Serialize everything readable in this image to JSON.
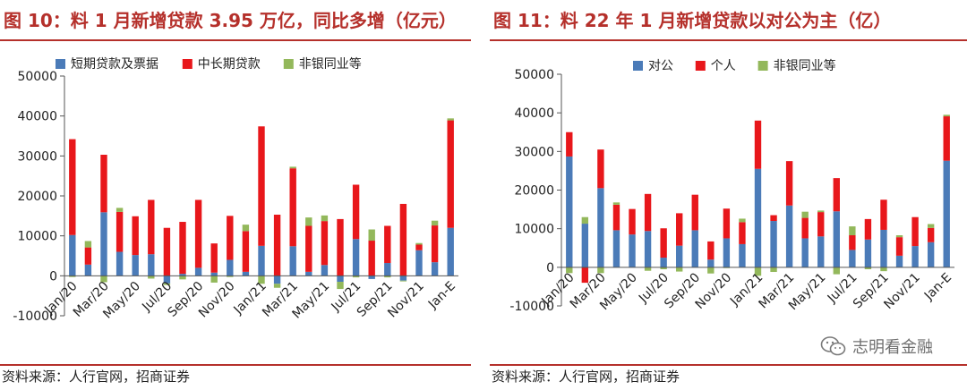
{
  "colors": {
    "short": "#4b7bb8",
    "long": "#e8171b",
    "nonbank": "#93b85b",
    "accent": "#b5302b"
  },
  "left": {
    "title": "图 10：料 1 月新增贷款 3.95 万亿，同比多增（亿元）",
    "source": "资料来源：人行官网，招商证券"
  },
  "right": {
    "title": "图 11：料 22 年 1 月新增贷款以对公为主（亿）",
    "source": "资料来源：人行官网，招商证券"
  },
  "watermark": {
    "text": "志明看金融",
    "icon": "wechat-icon"
  },
  "chart_data": [
    {
      "type": "bar",
      "stacked": true,
      "legend_position": "top",
      "grid": false,
      "ylim": [
        -10000,
        50000
      ],
      "yticks": [
        "-10000",
        "0",
        "10000",
        "20000",
        "30000",
        "40000",
        "50000"
      ],
      "categories": [
        "Jan/20",
        "Feb/20",
        "Mar/20",
        "Apr/20",
        "May/20",
        "Jun/20",
        "Jul/20",
        "Aug/20",
        "Sep/20",
        "Oct/20",
        "Nov/20",
        "Dec/20",
        "Jan/21",
        "Feb/21",
        "Mar/21",
        "Apr/21",
        "May/21",
        "Jun/21",
        "Jul/21",
        "Aug/21",
        "Sep/21",
        "Oct/21",
        "Nov/21",
        "Dec/21",
        "Jan-E"
      ],
      "xtick_labels": [
        "Jan/20",
        "",
        "Mar/20",
        "",
        "May/20",
        "",
        "Jul/20",
        "",
        "Sep/20",
        "",
        "Nov/20",
        "",
        "Jan/21",
        "",
        "Mar/21",
        "",
        "May/21",
        "",
        "Jul/21",
        "",
        "Sep/21",
        "",
        "Nov/21",
        "",
        "Jan-E"
      ],
      "series": [
        {
          "name": "短期贷款及票据",
          "values": [
            10200,
            2800,
            15900,
            6000,
            5200,
            5400,
            -1900,
            500,
            2000,
            800,
            4000,
            1000,
            7500,
            -2000,
            7400,
            1000,
            2700,
            -1500,
            9200,
            -800,
            3200,
            -1200,
            6400,
            3400,
            12000
          ]
        },
        {
          "name": "中长期贷款",
          "values": [
            24000,
            4300,
            14400,
            10000,
            9700,
            13600,
            12000,
            13000,
            17000,
            7300,
            11000,
            10200,
            29900,
            15300,
            19500,
            11500,
            11000,
            14200,
            13600,
            8800,
            9300,
            18000,
            1400,
            9200,
            26900
          ]
        },
        {
          "name": "非银同业等",
          "values": [
            -300,
            1600,
            -1600,
            1000,
            0,
            -700,
            -400,
            -900,
            0,
            -1700,
            -300,
            1600,
            -2000,
            -1000,
            400,
            2100,
            1400,
            -1800,
            -400,
            2800,
            -400,
            -200,
            400,
            1200,
            500
          ]
        }
      ]
    },
    {
      "type": "bar",
      "stacked": true,
      "legend_position": "top",
      "grid": false,
      "ylim": [
        -10000,
        50000
      ],
      "yticks": [
        "-10000",
        "0",
        "10000",
        "20000",
        "30000",
        "40000",
        "50000"
      ],
      "categories": [
        "Jan/20",
        "Feb/20",
        "Mar/20",
        "Apr/20",
        "May/20",
        "Jun/20",
        "Jul/20",
        "Aug/20",
        "Sep/20",
        "Oct/20",
        "Nov/20",
        "Dec/20",
        "Jan/21",
        "Feb/21",
        "Mar/21",
        "Apr/21",
        "May/21",
        "Jun/21",
        "Jul/21",
        "Aug/21",
        "Sep/21",
        "Oct/21",
        "Nov/21",
        "Dec/21",
        "Jan-E"
      ],
      "xtick_labels": [
        "Jan/20",
        "",
        "Mar/20",
        "",
        "May/20",
        "",
        "Jul/20",
        "",
        "Sep/20",
        "",
        "Nov/20",
        "",
        "Jan/21",
        "",
        "Mar/21",
        "",
        "May/21",
        "",
        "Jul/21",
        "",
        "Sep/21",
        "",
        "Nov/21",
        "",
        "Jan-E"
      ],
      "series": [
        {
          "name": "对公",
          "values": [
            28700,
            11300,
            20500,
            9600,
            8500,
            9400,
            2500,
            5600,
            9600,
            2000,
            7500,
            6000,
            25500,
            12000,
            16000,
            7500,
            8000,
            14500,
            4500,
            7200,
            9700,
            3000,
            5500,
            6500,
            27600
          ]
        },
        {
          "name": "个人",
          "values": [
            6300,
            -4000,
            10000,
            6600,
            6600,
            9600,
            7600,
            8400,
            9200,
            4700,
            7700,
            5700,
            12500,
            1500,
            11500,
            5300,
            6300,
            8600,
            3800,
            5300,
            7800,
            4800,
            7500,
            3700,
            11500
          ]
        },
        {
          "name": "非银同业等",
          "values": [
            -1500,
            1700,
            -1500,
            600,
            0,
            -900,
            -500,
            -1100,
            0,
            -1600,
            -200,
            900,
            -2200,
            -1200,
            0,
            1600,
            400,
            -1800,
            2300,
            -500,
            -1000,
            500,
            0,
            1000,
            400
          ]
        }
      ]
    }
  ]
}
